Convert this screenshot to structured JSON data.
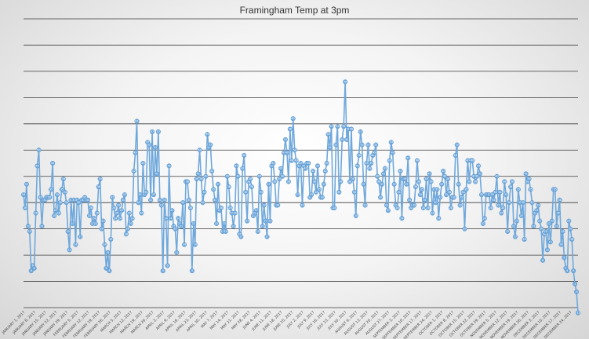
{
  "chart_data": {
    "type": "line",
    "title": "Framingham Temp at 3pm",
    "xlabel": "",
    "ylabel": "",
    "grid": true,
    "legend": "none",
    "y_gridlines": [
      -10,
      0,
      10,
      20,
      30,
      40,
      50,
      60,
      70,
      80,
      90,
      100
    ],
    "series_color": "#6fa8dc",
    "x_tick_labels": [
      "JANUARY 1, 2017",
      "JANUARY 8, 2017",
      "JANUARY 15, 2017",
      "JANUARY 22, 2017",
      "JANUARY 29, 2017",
      "FEBRUARY 5, 2017",
      "FEBRUARY 12, 2017",
      "FEBRUARY 19, 2017",
      "FEBRUARY 26, 2017",
      "MARCH 5, 2017",
      "MARCH 12, 2017",
      "MARCH 19, 2017",
      "MARCH 26, 2017",
      "APRIL 2, 2017",
      "APRIL 9, 2017",
      "APRIL 16, 2017",
      "APRIL 23, 2017",
      "APRIL 30, 2017",
      "MAY 7, 2017",
      "MAY 14, 2017",
      "MAY 21, 2017",
      "MAY 28, 2017",
      "JUNE 4, 2017",
      "JUNE 11, 2017",
      "JUNE 18, 2017",
      "JUNE 25, 2017",
      "JULY 2, 2017",
      "JULY 9, 2017",
      "JULY 16, 2017",
      "JULY 23, 2017",
      "JULY 30, 2017",
      "AUGUST 6, 2017",
      "AUGUST 13, 2017",
      "AUGUST 20, 2017",
      "AUGUST 27, 2017",
      "SEPTEMBER 3, 2017",
      "SEPTEMBER 10, 2017",
      "SEPTEMBER 17, 2017",
      "SEPTEMBER 24, 2017",
      "OCTOBER 1, 2017",
      "OCTOBER 8, 2017",
      "OCTOBER 15, 2017",
      "OCTOBER 22, 2017",
      "OCTOBER 29, 2017",
      "NOVEMBER 5, 2017",
      "NOVEMBER 12, 2017",
      "NOVEMBER 19, 2017",
      "NOVEMBER 26, 2017",
      "DECEMBER 3, 2017",
      "DECEMBER 10, 2017",
      "DECEMBER 17, 2017",
      "DECEMBER 24, 2017"
    ],
    "x_start": "2017-01-01",
    "x_end": "2017-12-31",
    "series": [
      {
        "values": [
          33,
          28,
          37,
          21,
          19,
          4,
          6,
          5,
          26,
          44,
          50,
          32,
          21,
          31,
          31,
          32,
          32,
          32,
          35,
          45,
          25,
          27,
          33,
          26,
          30,
          35,
          39,
          34,
          30,
          19,
          12,
          31,
          22,
          31,
          14,
          31,
          30,
          17,
          31,
          31,
          32,
          31,
          31,
          25,
          28,
          22,
          24,
          22,
          26,
          36,
          39,
          20,
          23,
          14,
          5,
          11,
          4,
          16,
          32,
          28,
          24,
          26,
          29,
          24,
          27,
          31,
          33,
          18,
          20,
          26,
          22,
          24,
          42,
          49,
          61,
          30,
          33,
          26,
          45,
          33,
          34,
          53,
          52,
          31,
          57,
          33,
          51,
          41,
          57,
          31,
          29,
          4,
          31,
          24,
          6,
          44,
          24,
          27,
          21,
          20,
          11,
          24,
          22,
          21,
          30,
          14,
          38,
          38,
          31,
          28,
          4,
          22,
          14,
          39,
          41,
          50,
          39,
          30,
          34,
          40,
          56,
          51,
          52,
          42,
          35,
          31,
          22,
          37,
          27,
          28,
          19,
          22,
          19,
          40,
          36,
          28,
          26,
          21,
          26,
          44,
          40,
          18,
          17,
          43,
          48,
          34,
          23,
          38,
          39,
          36,
          25,
          26,
          27,
          19,
          40,
          34,
          21,
          29,
          23,
          17,
          37,
          23,
          44,
          45,
          38,
          29,
          29,
          39,
          43,
          40,
          49,
          54,
          49,
          38,
          58,
          46,
          62,
          50,
          46,
          33,
          44,
          45,
          29,
          44,
          43,
          45,
          45,
          32,
          33,
          42,
          38,
          34,
          44,
          35,
          32,
          32,
          37,
          42,
          45,
          56,
          51,
          59,
          28,
          28,
          52,
          59,
          34,
          38,
          54,
          59,
          76,
          54,
          58,
          38,
          58,
          39,
          34,
          25,
          44,
          48,
          57,
          52,
          37,
          29,
          45,
          52,
          43,
          45,
          48,
          49,
          52,
          40,
          38,
          32,
          37,
          41,
          43,
          29,
          27,
          46,
          53,
          49,
          37,
          29,
          28,
          34,
          42,
          24,
          39,
          39,
          37,
          47,
          31,
          28,
          29,
          29,
          36,
          46,
          38,
          33,
          35,
          28,
          31,
          39,
          28,
          41,
          38,
          26,
          35,
          30,
          35,
          24,
          32,
          37,
          42,
          40,
          33,
          39,
          34,
          28,
          32,
          32,
          48,
          52,
          37,
          29,
          32,
          34,
          20,
          35,
          46,
          38,
          46,
          46,
          40,
          38,
          40,
          44,
          41,
          33,
          22,
          24,
          33,
          33,
          33,
          28,
          33,
          31,
          34,
          40,
          29,
          34,
          26,
          28,
          38,
          33,
          19,
          30,
          36,
          38,
          21,
          17,
          23,
          35,
          30,
          25,
          30,
          16,
          41,
          38,
          39,
          35,
          30,
          21,
          26,
          27,
          29,
          23,
          20,
          8,
          18,
          19,
          12,
          22,
          15,
          23,
          35,
          35,
          21,
          26,
          31,
          14,
          19,
          9,
          5,
          4,
          23,
          20,
          16,
          4,
          -1,
          -4,
          -12
        ],
        "values_note": ""
      }
    ]
  }
}
